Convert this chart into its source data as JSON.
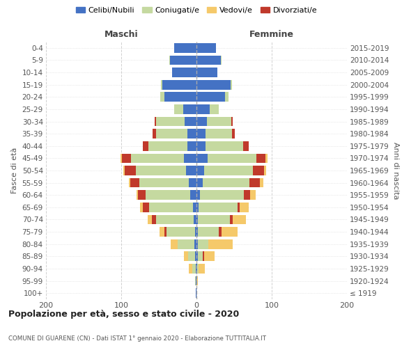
{
  "age_groups": [
    "100+",
    "95-99",
    "90-94",
    "85-89",
    "80-84",
    "75-79",
    "70-74",
    "65-69",
    "60-64",
    "55-59",
    "50-54",
    "45-49",
    "40-44",
    "35-39",
    "30-34",
    "25-29",
    "20-24",
    "15-19",
    "10-14",
    "5-9",
    "0-4"
  ],
  "birth_years": [
    "≤ 1919",
    "1920-1924",
    "1925-1929",
    "1930-1934",
    "1935-1939",
    "1940-1944",
    "1945-1949",
    "1950-1954",
    "1955-1959",
    "1960-1964",
    "1965-1969",
    "1970-1974",
    "1975-1979",
    "1980-1984",
    "1985-1989",
    "1990-1994",
    "1995-1999",
    "2000-2004",
    "2005-2009",
    "2010-2014",
    "2015-2019"
  ],
  "maschi": {
    "celibi": [
      1,
      1,
      1,
      2,
      3,
      2,
      4,
      5,
      8,
      10,
      14,
      17,
      12,
      12,
      16,
      18,
      43,
      45,
      32,
      35,
      30
    ],
    "coniugati": [
      0,
      1,
      5,
      9,
      22,
      38,
      50,
      58,
      60,
      66,
      67,
      70,
      52,
      42,
      38,
      12,
      5,
      2,
      0,
      1,
      0
    ],
    "vedovi": [
      0,
      0,
      4,
      6,
      9,
      6,
      6,
      4,
      2,
      2,
      2,
      2,
      0,
      0,
      0,
      0,
      0,
      0,
      0,
      0,
      0
    ],
    "divorziati": [
      0,
      0,
      0,
      0,
      0,
      3,
      5,
      8,
      10,
      12,
      14,
      12,
      7,
      4,
      2,
      0,
      0,
      0,
      0,
      0,
      0
    ]
  },
  "femmine": {
    "nubili": [
      0,
      0,
      1,
      2,
      2,
      2,
      2,
      3,
      5,
      8,
      10,
      15,
      12,
      12,
      14,
      18,
      38,
      45,
      28,
      32,
      26
    ],
    "coniugate": [
      0,
      0,
      2,
      6,
      14,
      28,
      42,
      52,
      58,
      62,
      65,
      65,
      50,
      35,
      32,
      12,
      5,
      2,
      0,
      1,
      0
    ],
    "vedove": [
      0,
      2,
      8,
      14,
      32,
      22,
      18,
      12,
      8,
      5,
      3,
      2,
      0,
      0,
      0,
      0,
      0,
      0,
      0,
      0,
      0
    ],
    "divorziate": [
      0,
      0,
      0,
      2,
      0,
      3,
      4,
      2,
      8,
      14,
      15,
      12,
      7,
      4,
      2,
      0,
      0,
      0,
      0,
      0,
      0
    ]
  },
  "colors": {
    "celibi_nubili": "#4472c4",
    "coniugati": "#c5d9a0",
    "vedovi": "#f5c96a",
    "divorziati": "#c0392b"
  },
  "xlim": [
    -200,
    200
  ],
  "xticks": [
    -200,
    -100,
    0,
    100,
    200
  ],
  "xticklabels": [
    "200",
    "100",
    "0",
    "100",
    "200"
  ],
  "title": "Popolazione per età, sesso e stato civile - 2020",
  "subtitle": "COMUNE DI GUARENE (CN) - Dati ISTAT 1° gennaio 2020 - Elaborazione TUTTITALIA.IT",
  "ylabel_left": "Fasce di età",
  "ylabel_right": "Anni di nascita",
  "header_left": "Maschi",
  "header_right": "Femmine",
  "background_color": "#ffffff",
  "grid_color": "#cccccc"
}
